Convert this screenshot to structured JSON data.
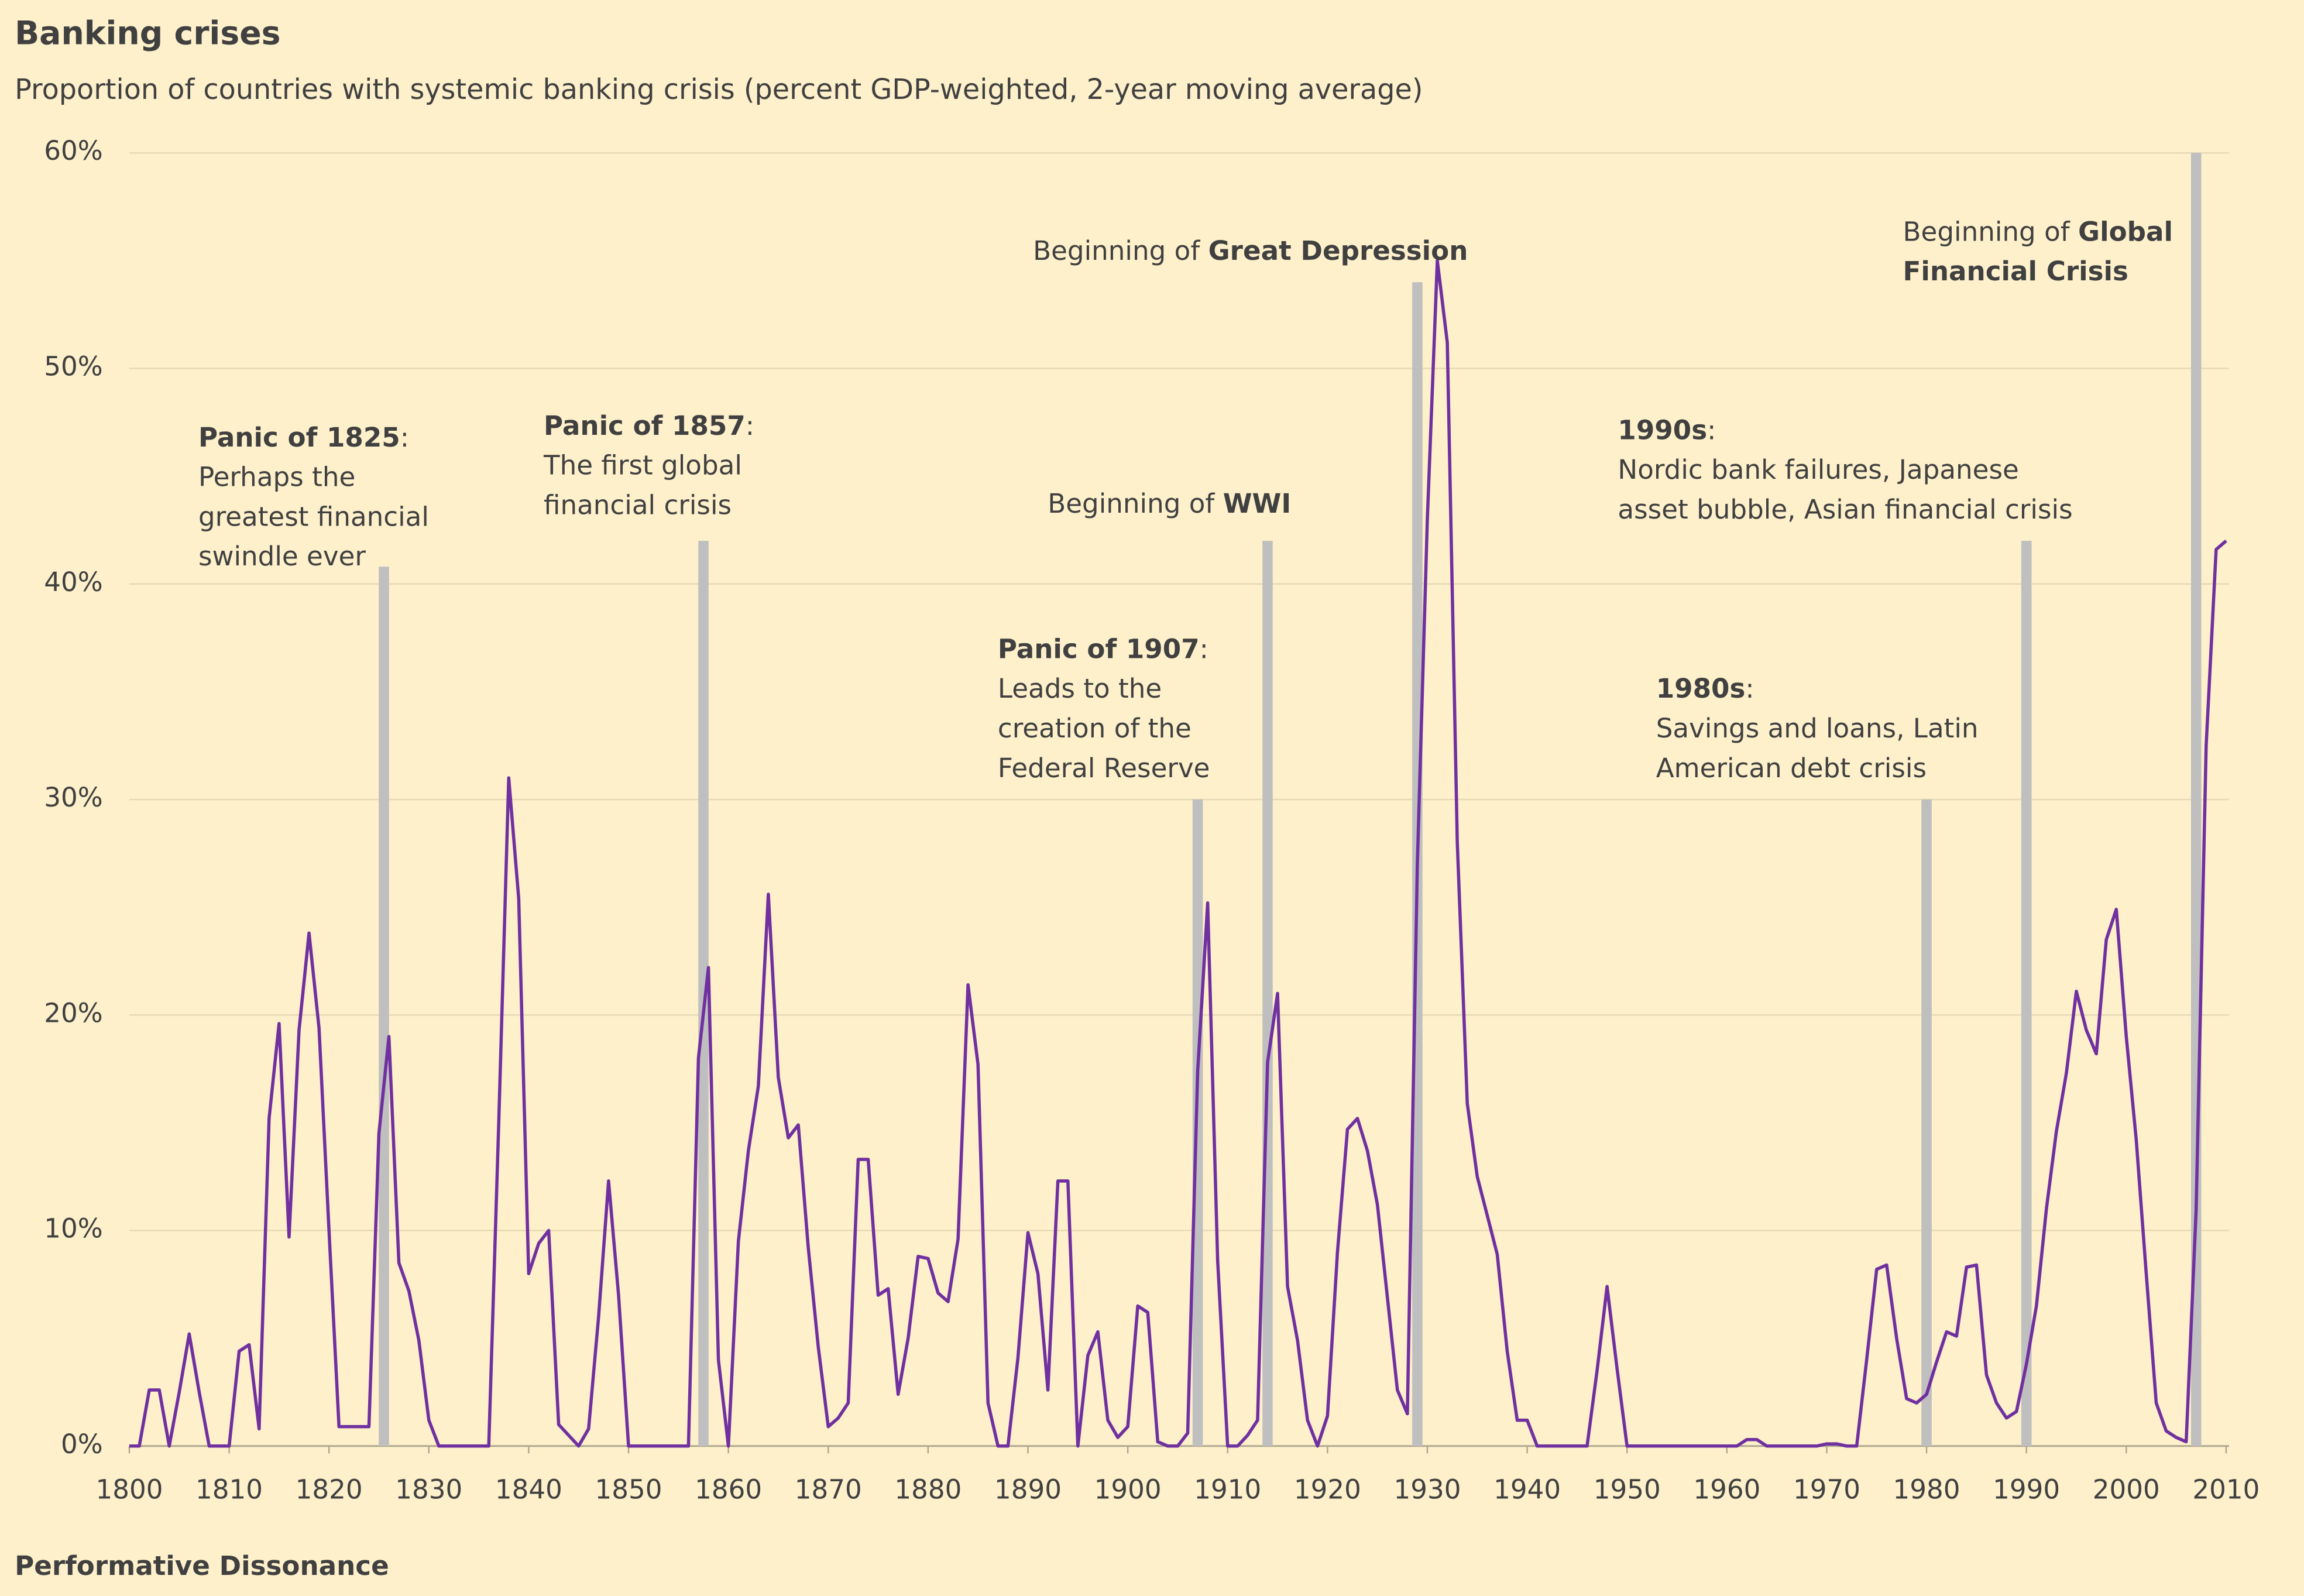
{
  "chart_data": {
    "type": "line",
    "title": "Banking crises",
    "subtitle": "Proportion of countries with systemic banking crisis (percent GDP-weighted, 2-year moving average)",
    "source": "Performative Dissonance",
    "x": [
      1800,
      1801,
      1802,
      1803,
      1804,
      1805,
      1806,
      1807,
      1808,
      1809,
      1810,
      1811,
      1812,
      1813,
      1814,
      1815,
      1816,
      1817,
      1818,
      1819,
      1820,
      1821,
      1822,
      1823,
      1824,
      1825,
      1826,
      1827,
      1828,
      1829,
      1830,
      1831,
      1832,
      1833,
      1834,
      1835,
      1836,
      1837,
      1838,
      1839,
      1840,
      1841,
      1842,
      1843,
      1844,
      1845,
      1846,
      1847,
      1848,
      1849,
      1850,
      1851,
      1852,
      1853,
      1854,
      1855,
      1856,
      1857,
      1858,
      1859,
      1860,
      1861,
      1862,
      1863,
      1864,
      1865,
      1866,
      1867,
      1868,
      1869,
      1870,
      1871,
      1872,
      1873,
      1874,
      1875,
      1876,
      1877,
      1878,
      1879,
      1880,
      1881,
      1882,
      1883,
      1884,
      1885,
      1886,
      1887,
      1888,
      1889,
      1890,
      1891,
      1892,
      1893,
      1894,
      1895,
      1896,
      1897,
      1898,
      1899,
      1900,
      1901,
      1902,
      1903,
      1904,
      1905,
      1906,
      1907,
      1908,
      1909,
      1910,
      1911,
      1912,
      1913,
      1914,
      1915,
      1916,
      1917,
      1918,
      1919,
      1920,
      1921,
      1922,
      1923,
      1924,
      1925,
      1926,
      1927,
      1928,
      1929,
      1930,
      1931,
      1932,
      1933,
      1934,
      1935,
      1936,
      1937,
      1938,
      1939,
      1940,
      1941,
      1942,
      1943,
      1944,
      1945,
      1946,
      1947,
      1948,
      1949,
      1950,
      1951,
      1952,
      1953,
      1954,
      1955,
      1956,
      1957,
      1958,
      1959,
      1960,
      1961,
      1962,
      1963,
      1964,
      1965,
      1966,
      1967,
      1968,
      1969,
      1970,
      1971,
      1972,
      1973,
      1974,
      1975,
      1976,
      1977,
      1978,
      1979,
      1980,
      1981,
      1982,
      1983,
      1984,
      1985,
      1986,
      1987,
      1988,
      1989,
      1990,
      1991,
      1992,
      1993,
      1994,
      1995,
      1996,
      1997,
      1998,
      1999,
      2000,
      2001,
      2002,
      2003,
      2004,
      2005,
      2006,
      2007,
      2008,
      2009,
      2010
    ],
    "series": [
      {
        "color": "#7030a0",
        "values": [
          0,
          0,
          2.6,
          2.6,
          0,
          2.5,
          5.2,
          2.5,
          0,
          0,
          0,
          4.4,
          4.7,
          0.8,
          15.2,
          19.6,
          9.7,
          19.3,
          23.8,
          19.4,
          10,
          0.9,
          0.9,
          0.9,
          0.9,
          14.5,
          19,
          8.5,
          7.2,
          4.9,
          1.2,
          0,
          0,
          0,
          0,
          0,
          0,
          15,
          31,
          25.4,
          8,
          9.4,
          10,
          1,
          0.5,
          0,
          0.8,
          6,
          12.3,
          7,
          0,
          0,
          0,
          0,
          0,
          0,
          0,
          18,
          22.2,
          4,
          0,
          9.5,
          13.7,
          16.7,
          25.6,
          17.1,
          14.3,
          14.9,
          9.2,
          4.6,
          0.9,
          1.3,
          2,
          13.3,
          13.3,
          7,
          7.3,
          2.4,
          5,
          8.8,
          8.7,
          7.1,
          6.7,
          9.6,
          21.4,
          17.7,
          2,
          0,
          0,
          4.1,
          9.9,
          8,
          2.6,
          12.3,
          12.3,
          0,
          4.2,
          5.3,
          1.2,
          0.4,
          0.9,
          6.5,
          6.2,
          0.2,
          0,
          0,
          0.6,
          17.4,
          25.2,
          8.6,
          0,
          0,
          0.5,
          1.2,
          17.8,
          21,
          7.4,
          4.9,
          1.2,
          0,
          1.4,
          9,
          14.7,
          15.2,
          13.7,
          11.2,
          6.9,
          2.6,
          1.5,
          27,
          43,
          55,
          51.2,
          28,
          15.9,
          12.5,
          10.7,
          8.9,
          4.4,
          1.2,
          1.2,
          0,
          0,
          0,
          0,
          0,
          0,
          3.5,
          7.4,
          3.6,
          0,
          0,
          0,
          0,
          0,
          0,
          0,
          0,
          0,
          0,
          0,
          0,
          0.3,
          0.3,
          0,
          0,
          0,
          0,
          0,
          0,
          0.1,
          0.1,
          0,
          0,
          4,
          8.2,
          8.4,
          5,
          2.2,
          2,
          2.4,
          3.9,
          5.3,
          5.1,
          8.3,
          8.4,
          3.3,
          2,
          1.3,
          1.6,
          3.8,
          6.5,
          11,
          14.6,
          17.3,
          21.1,
          19.3,
          18.2,
          23.5,
          24.9,
          19,
          14.2,
          8,
          2,
          0.7,
          0.4,
          0.2,
          11,
          32.5,
          41.6,
          42
        ]
      }
    ],
    "xlim": [
      1800,
      2010
    ],
    "xticks": [
      1800,
      1810,
      1820,
      1830,
      1840,
      1850,
      1860,
      1870,
      1880,
      1890,
      1900,
      1910,
      1920,
      1930,
      1940,
      1950,
      1960,
      1970,
      1980,
      1990,
      2000,
      2010
    ],
    "ylim": [
      0,
      60
    ],
    "yticks": [
      {
        "value": 0,
        "label": "0%"
      },
      {
        "value": 10,
        "label": "10%"
      },
      {
        "value": 20,
        "label": "20%"
      },
      {
        "value": 30,
        "label": "30%"
      },
      {
        "value": 40,
        "label": "40%"
      },
      {
        "value": 50,
        "label": "50%"
      },
      {
        "value": 60,
        "label": "60%"
      }
    ],
    "grid": true,
    "marker_color": "#bfbfbf",
    "markers": [
      {
        "x": 1825.5,
        "y": 40.8
      },
      {
        "x": 1857.5,
        "y": 42
      },
      {
        "x": 1907,
        "y": 30
      },
      {
        "x": 1914,
        "y": 42
      },
      {
        "x": 1929,
        "y": 54
      },
      {
        "x": 1980,
        "y": 30
      },
      {
        "x": 1990,
        "y": 42
      },
      {
        "x": 2007,
        "y": 60
      }
    ],
    "annotations": [
      {
        "lines": [
          [
            {
              "t": "Panic of 1825",
              "b": true
            },
            {
              "t": ":"
            }
          ],
          [
            {
              "t": "Perhaps the"
            }
          ],
          [
            {
              "t": "greatest financial"
            }
          ],
          [
            {
              "t": "swindle ever"
            }
          ]
        ]
      },
      {
        "lines": [
          [
            {
              "t": "Panic of 1857",
              "b": true
            },
            {
              "t": ":"
            }
          ],
          [
            {
              "t": "The first global"
            }
          ],
          [
            {
              "t": "financial crisis"
            }
          ]
        ]
      },
      {
        "lines": [
          [
            {
              "t": "Beginning of "
            },
            {
              "t": "WWI",
              "b": true
            }
          ]
        ]
      },
      {
        "lines": [
          [
            {
              "t": "Panic of 1907",
              "b": true
            },
            {
              "t": ":"
            }
          ],
          [
            {
              "t": "Leads to the"
            }
          ],
          [
            {
              "t": "creation of the"
            }
          ],
          [
            {
              "t": "Federal Reserve"
            }
          ]
        ]
      },
      {
        "lines": [
          [
            {
              "t": "Beginning of "
            },
            {
              "t": "Great Depression",
              "b": true
            }
          ]
        ]
      },
      {
        "lines": [
          [
            {
              "t": "1990s",
              "b": true
            },
            {
              "t": ":"
            }
          ],
          [
            {
              "t": "Nordic bank failures, Japanese"
            }
          ],
          [
            {
              "t": "asset bubble, Asian financial crisis"
            }
          ]
        ]
      },
      {
        "lines": [
          [
            {
              "t": "1980s",
              "b": true
            },
            {
              "t": ":"
            }
          ],
          [
            {
              "t": "Savings and loans, Latin"
            }
          ],
          [
            {
              "t": "American debt crisis"
            }
          ]
        ]
      },
      {
        "lines": [
          [
            {
              "t": "Beginning of "
            },
            {
              "t": "Global",
              "b": true
            }
          ],
          [
            {
              "t": "Financial Crisis",
              "b": true
            }
          ]
        ]
      }
    ]
  }
}
